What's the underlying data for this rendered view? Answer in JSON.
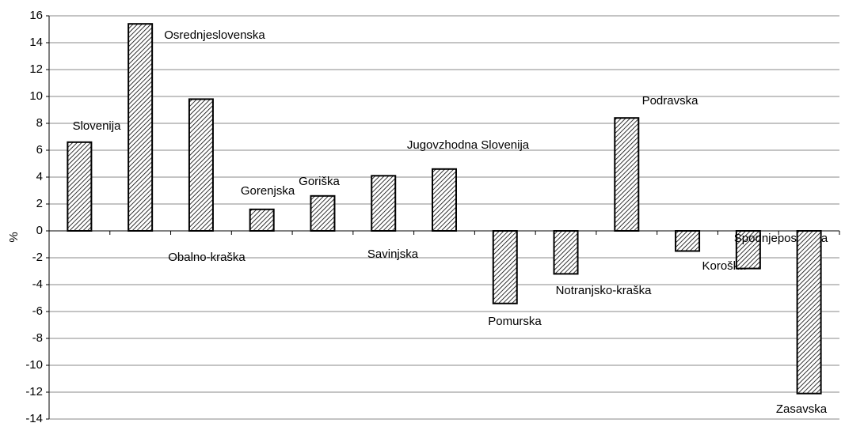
{
  "chart_data": {
    "type": "bar",
    "y_label": "%",
    "categories": [
      "Slovenija",
      "Osrednjeslovenska",
      "Obalno-kraška",
      "Gorenjska",
      "Goriška",
      "Savinjska",
      "Jugovzhodna Slovenija",
      "Pomurska",
      "Notranjsko-kraška",
      "Podravska",
      "Koroška",
      "Spodnjeposavska",
      "Zasavska"
    ],
    "values": [
      6.6,
      15.4,
      9.8,
      1.6,
      2.6,
      4.1,
      4.6,
      -5.4,
      -3.2,
      8.4,
      -1.5,
      -2.8,
      -12.1
    ],
    "ylim": [
      -14,
      16
    ],
    "yticks": [
      -14,
      -12,
      -10,
      -8,
      -6,
      -4,
      -2,
      0,
      2,
      4,
      6,
      8,
      10,
      12,
      14,
      16
    ],
    "grid": true
  }
}
